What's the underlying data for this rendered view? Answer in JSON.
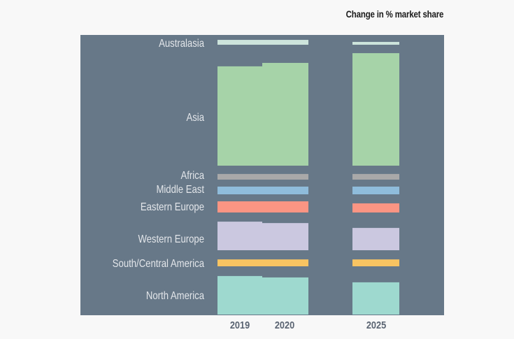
{
  "chart_data": {
    "type": "bar",
    "title": "Change in % market share",
    "categories": [
      "Australasia",
      "Asia",
      "Africa",
      "Middle East",
      "Eastern Europe",
      "Western Europe",
      "South/Central America",
      "North America"
    ],
    "x": [
      "2019",
      "2020",
      "2025"
    ],
    "series": [
      {
        "year": "2019",
        "values": [
          2.4,
          49.0,
          2.8,
          3.8,
          5.5,
          14.1,
          3.4,
          19.0
        ]
      },
      {
        "year": "2020",
        "values": [
          2.4,
          50.7,
          2.8,
          3.8,
          5.5,
          13.4,
          3.4,
          18.3
        ]
      },
      {
        "year": "2025",
        "values": [
          1.4,
          55.5,
          2.8,
          3.8,
          4.5,
          11.0,
          3.4,
          15.9
        ]
      }
    ],
    "colors": [
      "#cde4dc",
      "#a6d3a8",
      "#a9a9a9",
      "#8fbcdb",
      "#fb9583",
      "#cbc8e0",
      "#f8c462",
      "#9ed9cf"
    ],
    "background": "#677888",
    "grid": false,
    "legend": "none"
  }
}
